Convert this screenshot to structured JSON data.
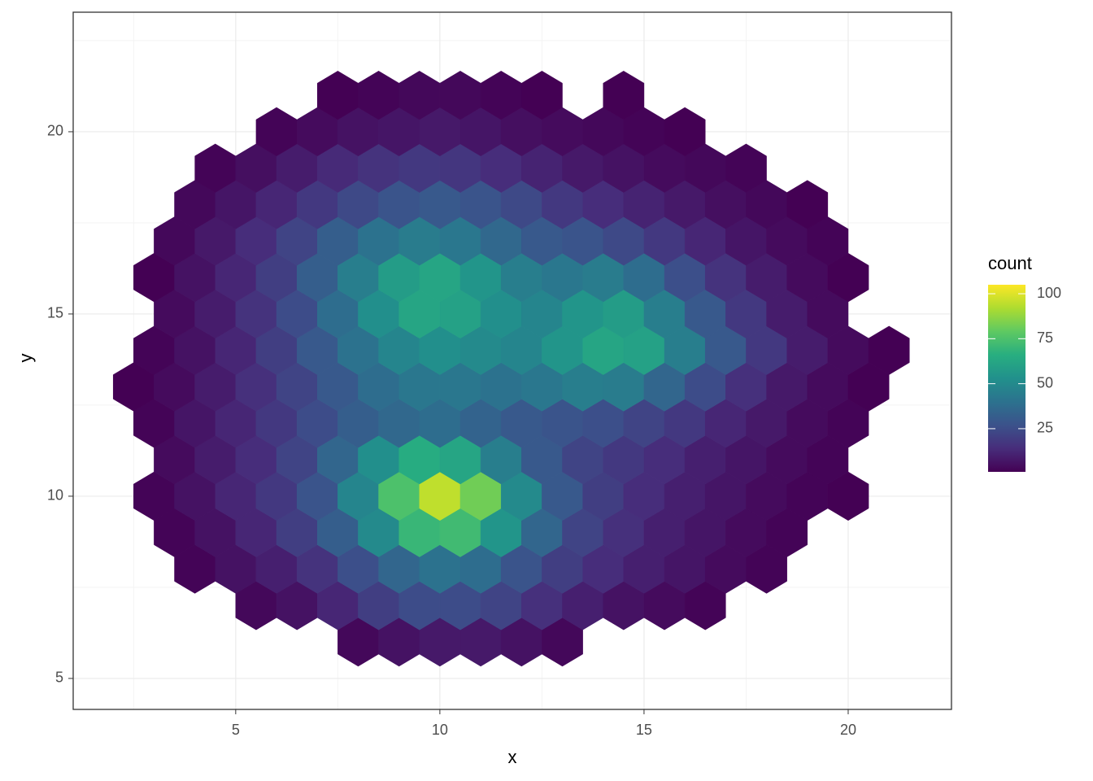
{
  "chart_data": {
    "type": "hexbin",
    "x_label": "x",
    "y_label": "y",
    "xlim": [
      1.02,
      22.53
    ],
    "ylim": [
      4.15,
      23.28
    ],
    "xticks": [
      5,
      10,
      15,
      20
    ],
    "yticks": [
      5,
      10,
      15,
      20
    ],
    "xminor": [
      2.5,
      7.5,
      12.5,
      17.5,
      22.5
    ],
    "yminor": [
      7.5,
      12.5,
      17.5,
      22.5
    ],
    "grid": true,
    "legend_title": "count",
    "clim": [
      1,
      105
    ],
    "cticks": [
      25,
      50,
      75,
      100
    ],
    "palette": [
      "#440154",
      "#472d7b",
      "#3b528b",
      "#2c728e",
      "#21918c",
      "#28ae80",
      "#5ec962",
      "#addc30",
      "#fde725"
    ],
    "points": [
      [
        8,
        6,
        3
      ],
      [
        9,
        6,
        6
      ],
      [
        10,
        6,
        8
      ],
      [
        11,
        6,
        8
      ],
      [
        12,
        6,
        6
      ],
      [
        13,
        6,
        3
      ],
      [
        5.5,
        7,
        3
      ],
      [
        6.5,
        7,
        6
      ],
      [
        7.5,
        7,
        12
      ],
      [
        8.5,
        7,
        20
      ],
      [
        9.5,
        7,
        25
      ],
      [
        10.5,
        7,
        25
      ],
      [
        11.5,
        7,
        22
      ],
      [
        12.5,
        7,
        15
      ],
      [
        13.5,
        7,
        10
      ],
      [
        14.5,
        7,
        6
      ],
      [
        15.5,
        7,
        4
      ],
      [
        16.5,
        7,
        2
      ],
      [
        4,
        8,
        2
      ],
      [
        5,
        8,
        6
      ],
      [
        6,
        8,
        10
      ],
      [
        7,
        8,
        16
      ],
      [
        8,
        8,
        26
      ],
      [
        9,
        8,
        35
      ],
      [
        10,
        8,
        40
      ],
      [
        11,
        8,
        38
      ],
      [
        12,
        8,
        28
      ],
      [
        13,
        8,
        20
      ],
      [
        14,
        8,
        14
      ],
      [
        15,
        8,
        10
      ],
      [
        16,
        8,
        7
      ],
      [
        17,
        8,
        4
      ],
      [
        18,
        8,
        2
      ],
      [
        3.5,
        9,
        2
      ],
      [
        4.5,
        9,
        6
      ],
      [
        5.5,
        9,
        12
      ],
      [
        6.5,
        9,
        20
      ],
      [
        7.5,
        9,
        32
      ],
      [
        8.5,
        9,
        50
      ],
      [
        9.5,
        9,
        70
      ],
      [
        10.5,
        9,
        72
      ],
      [
        11.5,
        9,
        55
      ],
      [
        12.5,
        9,
        35
      ],
      [
        13.5,
        9,
        22
      ],
      [
        14.5,
        9,
        15
      ],
      [
        15.5,
        9,
        10
      ],
      [
        16.5,
        9,
        7
      ],
      [
        17.5,
        9,
        4
      ],
      [
        18.5,
        9,
        2
      ],
      [
        3,
        10,
        2
      ],
      [
        4,
        10,
        6
      ],
      [
        5,
        10,
        12
      ],
      [
        6,
        10,
        18
      ],
      [
        7,
        10,
        28
      ],
      [
        8,
        10,
        48
      ],
      [
        9,
        10,
        75
      ],
      [
        10,
        10,
        95
      ],
      [
        11,
        10,
        82
      ],
      [
        12,
        10,
        50
      ],
      [
        13,
        10,
        30
      ],
      [
        14,
        10,
        20
      ],
      [
        15,
        10,
        14
      ],
      [
        16,
        10,
        10
      ],
      [
        17,
        10,
        7
      ],
      [
        18,
        10,
        4
      ],
      [
        19,
        10,
        2
      ],
      [
        20,
        10,
        1
      ],
      [
        3.5,
        11,
        4
      ],
      [
        4.5,
        11,
        9
      ],
      [
        5.5,
        11,
        14
      ],
      [
        6.5,
        11,
        22
      ],
      [
        7.5,
        11,
        35
      ],
      [
        8.5,
        11,
        52
      ],
      [
        9.5,
        11,
        65
      ],
      [
        10.5,
        11,
        62
      ],
      [
        11.5,
        11,
        45
      ],
      [
        12.5,
        11,
        30
      ],
      [
        13.5,
        11,
        22
      ],
      [
        14.5,
        11,
        18
      ],
      [
        15.5,
        11,
        14
      ],
      [
        16.5,
        11,
        10
      ],
      [
        17.5,
        11,
        7
      ],
      [
        18.5,
        11,
        4
      ],
      [
        19.5,
        11,
        2
      ],
      [
        3,
        12,
        2
      ],
      [
        4,
        12,
        7
      ],
      [
        5,
        12,
        12
      ],
      [
        6,
        12,
        18
      ],
      [
        7,
        12,
        25
      ],
      [
        8,
        12,
        32
      ],
      [
        9,
        12,
        36
      ],
      [
        10,
        12,
        38
      ],
      [
        11,
        12,
        34
      ],
      [
        12,
        12,
        30
      ],
      [
        13,
        12,
        28
      ],
      [
        14,
        12,
        26
      ],
      [
        15,
        12,
        22
      ],
      [
        16,
        12,
        18
      ],
      [
        17,
        12,
        12
      ],
      [
        18,
        12,
        8
      ],
      [
        19,
        12,
        4
      ],
      [
        20,
        12,
        2
      ],
      [
        2.5,
        13,
        1
      ],
      [
        3.5,
        13,
        4
      ],
      [
        4.5,
        13,
        9
      ],
      [
        5.5,
        13,
        15
      ],
      [
        6.5,
        13,
        22
      ],
      [
        7.5,
        13,
        30
      ],
      [
        8.5,
        13,
        38
      ],
      [
        9.5,
        13,
        42
      ],
      [
        10.5,
        13,
        42
      ],
      [
        11.5,
        13,
        40
      ],
      [
        12.5,
        13,
        42
      ],
      [
        13.5,
        13,
        45
      ],
      [
        14.5,
        13,
        44
      ],
      [
        15.5,
        13,
        35
      ],
      [
        16.5,
        13,
        25
      ],
      [
        17.5,
        13,
        15
      ],
      [
        18.5,
        13,
        8
      ],
      [
        19.5,
        13,
        4
      ],
      [
        20.5,
        13,
        1
      ],
      [
        3,
        14,
        2
      ],
      [
        4,
        14,
        6
      ],
      [
        5,
        14,
        12
      ],
      [
        6,
        14,
        20
      ],
      [
        7,
        14,
        30
      ],
      [
        8,
        14,
        40
      ],
      [
        9,
        14,
        48
      ],
      [
        10,
        14,
        52
      ],
      [
        11,
        14,
        50
      ],
      [
        12,
        14,
        48
      ],
      [
        13,
        14,
        55
      ],
      [
        14,
        14,
        62
      ],
      [
        15,
        14,
        60
      ],
      [
        16,
        14,
        45
      ],
      [
        17,
        14,
        30
      ],
      [
        18,
        14,
        18
      ],
      [
        19,
        14,
        9
      ],
      [
        20,
        14,
        4
      ],
      [
        21,
        14,
        1
      ],
      [
        3.5,
        15,
        4
      ],
      [
        4.5,
        15,
        9
      ],
      [
        5.5,
        15,
        16
      ],
      [
        6.5,
        15,
        25
      ],
      [
        7.5,
        15,
        38
      ],
      [
        8.5,
        15,
        52
      ],
      [
        9.5,
        15,
        62
      ],
      [
        10.5,
        15,
        60
      ],
      [
        11.5,
        15,
        52
      ],
      [
        12.5,
        15,
        48
      ],
      [
        13.5,
        15,
        55
      ],
      [
        14.5,
        15,
        58
      ],
      [
        15.5,
        15,
        45
      ],
      [
        16.5,
        15,
        30
      ],
      [
        17.5,
        15,
        18
      ],
      [
        18.5,
        15,
        9
      ],
      [
        19.5,
        15,
        4
      ],
      [
        3,
        16,
        1
      ],
      [
        4,
        16,
        6
      ],
      [
        5,
        16,
        12
      ],
      [
        6,
        16,
        20
      ],
      [
        7,
        16,
        32
      ],
      [
        8,
        16,
        45
      ],
      [
        9,
        16,
        58
      ],
      [
        10,
        16,
        62
      ],
      [
        11,
        16,
        55
      ],
      [
        12,
        16,
        45
      ],
      [
        13,
        16,
        42
      ],
      [
        14,
        16,
        44
      ],
      [
        15,
        16,
        38
      ],
      [
        16,
        16,
        26
      ],
      [
        17,
        16,
        16
      ],
      [
        18,
        16,
        9
      ],
      [
        19,
        16,
        4
      ],
      [
        20,
        16,
        1
      ],
      [
        3.5,
        17,
        3
      ],
      [
        4.5,
        17,
        8
      ],
      [
        5.5,
        17,
        14
      ],
      [
        6.5,
        17,
        22
      ],
      [
        7.5,
        17,
        32
      ],
      [
        8.5,
        17,
        40
      ],
      [
        9.5,
        17,
        44
      ],
      [
        10.5,
        17,
        42
      ],
      [
        11.5,
        17,
        36
      ],
      [
        12.5,
        17,
        30
      ],
      [
        13.5,
        17,
        28
      ],
      [
        14.5,
        17,
        24
      ],
      [
        15.5,
        17,
        18
      ],
      [
        16.5,
        17,
        12
      ],
      [
        17.5,
        17,
        7
      ],
      [
        18.5,
        17,
        4
      ],
      [
        19.5,
        17,
        2
      ],
      [
        4,
        18,
        3
      ],
      [
        5,
        18,
        7
      ],
      [
        6,
        18,
        12
      ],
      [
        7,
        18,
        18
      ],
      [
        8,
        18,
        24
      ],
      [
        9,
        18,
        28
      ],
      [
        10,
        18,
        30
      ],
      [
        11,
        18,
        28
      ],
      [
        12,
        18,
        24
      ],
      [
        13,
        18,
        18
      ],
      [
        14,
        18,
        14
      ],
      [
        15,
        18,
        11
      ],
      [
        16,
        18,
        8
      ],
      [
        17,
        18,
        5
      ],
      [
        18,
        18,
        3
      ],
      [
        19,
        18,
        1
      ],
      [
        4.5,
        19,
        2
      ],
      [
        5.5,
        19,
        5
      ],
      [
        6.5,
        19,
        9
      ],
      [
        7.5,
        19,
        13
      ],
      [
        8.5,
        19,
        16
      ],
      [
        9.5,
        19,
        18
      ],
      [
        10.5,
        19,
        17
      ],
      [
        11.5,
        19,
        14
      ],
      [
        12.5,
        19,
        11
      ],
      [
        13.5,
        19,
        8
      ],
      [
        14.5,
        19,
        6
      ],
      [
        15.5,
        19,
        4
      ],
      [
        16.5,
        19,
        3
      ],
      [
        17.5,
        19,
        2
      ],
      [
        6,
        20,
        2
      ],
      [
        7,
        20,
        4
      ],
      [
        8,
        20,
        6
      ],
      [
        9,
        20,
        7
      ],
      [
        10,
        20,
        8
      ],
      [
        11,
        20,
        7
      ],
      [
        12,
        20,
        5
      ],
      [
        13,
        20,
        4
      ],
      [
        14,
        20,
        3
      ],
      [
        15,
        20,
        2
      ],
      [
        16,
        20,
        1
      ],
      [
        7.5,
        21,
        1
      ],
      [
        8.5,
        21,
        2
      ],
      [
        9.5,
        21,
        3
      ],
      [
        10.5,
        21,
        3
      ],
      [
        11.5,
        21,
        2
      ],
      [
        12.5,
        21,
        1
      ],
      [
        14.5,
        21,
        1
      ]
    ]
  }
}
